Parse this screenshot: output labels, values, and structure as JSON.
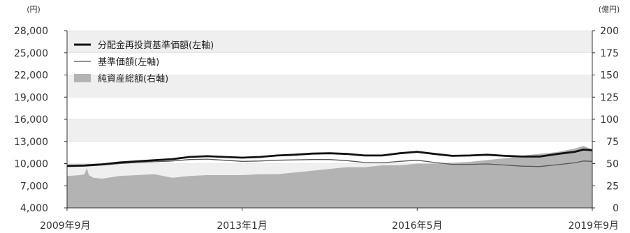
{
  "chart_data": {
    "type": "line",
    "left_axis": {
      "unit": "(円)",
      "ticks": [
        4000,
        7000,
        10000,
        13000,
        16000,
        19000,
        22000,
        25000,
        28000
      ],
      "range": [
        4000,
        28000
      ]
    },
    "right_axis": {
      "unit": "(億円)",
      "ticks": [
        0,
        25,
        50,
        75,
        100,
        125,
        150,
        175,
        200
      ],
      "range": [
        0,
        200
      ]
    },
    "x_ticks": [
      {
        "label": "2009年9月",
        "t": 0
      },
      {
        "label": "2013年1月",
        "t": 40
      },
      {
        "label": "2016年5月",
        "t": 80
      },
      {
        "label": "2019年9月",
        "t": 120
      }
    ],
    "legend": [
      {
        "label": "分配金再投資基準価額(左軸)",
        "style": "thick-line"
      },
      {
        "label": "基準価額(左軸)",
        "style": "thin-line"
      },
      {
        "label": "純資産総額(右軸)",
        "style": "area"
      }
    ],
    "grid": "alternating-bands",
    "colors": {
      "reinvest": "#111111",
      "nav": "#555555",
      "area": "#b3b3b3",
      "band": "#efefef"
    },
    "series": [
      {
        "name": "分配金再投資基準価額(左軸)",
        "axis": "left",
        "x": [
          0,
          4,
          8,
          12,
          16,
          20,
          24,
          28,
          32,
          36,
          40,
          44,
          48,
          52,
          56,
          60,
          64,
          68,
          72,
          76,
          80,
          84,
          88,
          92,
          96,
          100,
          104,
          108,
          112,
          116,
          118,
          120
        ],
        "values": [
          9700,
          9750,
          9900,
          10150,
          10300,
          10450,
          10600,
          10900,
          11000,
          10900,
          10800,
          10900,
          11100,
          11200,
          11350,
          11400,
          11300,
          11100,
          11100,
          11400,
          11600,
          11300,
          11050,
          11100,
          11200,
          11050,
          10950,
          10950,
          11300,
          11600,
          11900,
          11800
        ]
      },
      {
        "name": "基準価額(左軸)",
        "axis": "left",
        "x": [
          0,
          4,
          8,
          12,
          16,
          20,
          24,
          28,
          32,
          36,
          40,
          44,
          48,
          52,
          56,
          60,
          64,
          68,
          72,
          76,
          80,
          84,
          88,
          92,
          96,
          100,
          104,
          108,
          112,
          116,
          118,
          120
        ],
        "values": [
          9600,
          9650,
          9800,
          10000,
          10150,
          10250,
          10350,
          10550,
          10600,
          10450,
          10300,
          10350,
          10450,
          10500,
          10550,
          10550,
          10400,
          10150,
          10100,
          10300,
          10450,
          10150,
          9900,
          9900,
          9950,
          9800,
          9650,
          9600,
          9850,
          10100,
          10350,
          10300
        ]
      },
      {
        "name": "純資産総額(右軸)",
        "axis": "right",
        "x": [
          0,
          3,
          4,
          4.5,
          5,
          6,
          8,
          12,
          16,
          20,
          24,
          28,
          32,
          36,
          40,
          44,
          48,
          52,
          56,
          60,
          64,
          68,
          72,
          76,
          80,
          84,
          88,
          92,
          96,
          100,
          104,
          108,
          112,
          116,
          118,
          120
        ],
        "values": [
          36,
          37,
          38,
          45,
          37,
          34,
          33,
          36,
          37,
          38,
          34,
          36,
          37,
          37,
          37,
          38,
          38,
          40,
          42,
          44,
          46,
          46,
          48,
          48,
          50,
          50,
          51,
          52,
          54,
          56,
          59,
          61,
          63,
          67,
          70,
          66
        ]
      }
    ]
  }
}
